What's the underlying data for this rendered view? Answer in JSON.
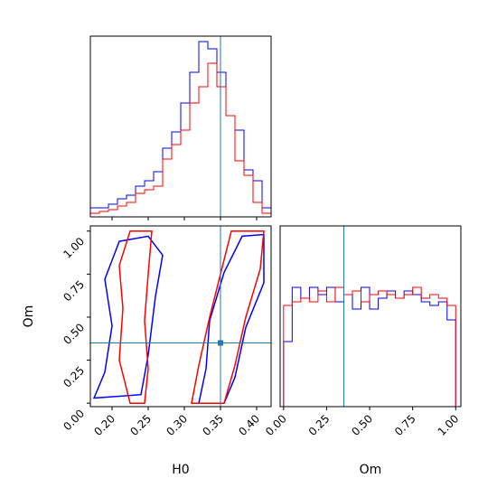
{
  "chart_data": {
    "type": "corner",
    "parameters": [
      "H0",
      "Om"
    ],
    "xlabels": {
      "H0": "H0",
      "Om": "Om"
    },
    "ylabels": {
      "Om": "Om"
    },
    "ranges": {
      "H0": [
        0.17,
        0.42
      ],
      "Om": [
        -0.02,
        1.03
      ]
    },
    "ticks": {
      "H0": [
        0.2,
        0.25,
        0.3,
        0.35,
        0.4
      ],
      "Om": [
        0.0,
        0.25,
        0.5,
        0.75,
        1.0
      ]
    },
    "tick_labels": {
      "H0": [
        "0.20",
        "0.25",
        "0.30",
        "0.35",
        "0.40"
      ],
      "Om": [
        "0.00",
        "0.25",
        "0.50",
        "0.75",
        "1.00"
      ]
    },
    "truths": {
      "H0": 0.35,
      "Om": 0.35
    },
    "colors": {
      "series_a": "#0000ff",
      "series_b": "#ff0000",
      "truth": "#1f77b4"
    },
    "series": [
      {
        "color": "#0000ff",
        "H0_hist": {
          "edges": [
            0.17,
            0.1825,
            0.195,
            0.2075,
            0.22,
            0.2325,
            0.245,
            0.2575,
            0.27,
            0.2825,
            0.295,
            0.3075,
            0.32,
            0.3325,
            0.345,
            0.3575,
            0.37,
            0.3825,
            0.395,
            0.4075,
            0.42
          ],
          "counts": [
            0.05,
            0.05,
            0.07,
            0.1,
            0.12,
            0.17,
            0.2,
            0.25,
            0.38,
            0.47,
            0.63,
            0.8,
            0.97,
            0.93,
            0.8,
            0.56,
            0.48,
            0.26,
            0.2,
            0.05
          ]
        },
        "Om_hist": {
          "edges": [
            0.0,
            0.05,
            0.1,
            0.15,
            0.2,
            0.25,
            0.3,
            0.35,
            0.4,
            0.45,
            0.5,
            0.55,
            0.6,
            0.65,
            0.7,
            0.75,
            0.8,
            0.85,
            0.9,
            0.95,
            1.0
          ],
          "counts": [
            0.36,
            0.66,
            0.6,
            0.66,
            0.62,
            0.66,
            0.58,
            0.62,
            0.54,
            0.66,
            0.54,
            0.6,
            0.64,
            0.6,
            0.64,
            0.62,
            0.58,
            0.56,
            0.58,
            0.48
          ]
        },
        "contours": [
          [
            [
              0.175,
              0.03
            ],
            [
              0.19,
              0.18
            ],
            [
              0.2,
              0.45
            ],
            [
              0.19,
              0.72
            ],
            [
              0.21,
              0.94
            ],
            [
              0.25,
              0.97
            ],
            [
              0.27,
              0.86
            ],
            [
              0.26,
              0.62
            ],
            [
              0.25,
              0.28
            ],
            [
              0.24,
              0.05
            ]
          ],
          [
            [
              0.32,
              0.0
            ],
            [
              0.33,
              0.2
            ],
            [
              0.335,
              0.48
            ],
            [
              0.355,
              0.76
            ],
            [
              0.38,
              0.97
            ],
            [
              0.41,
              0.98
            ],
            [
              0.41,
              0.7
            ],
            [
              0.385,
              0.44
            ],
            [
              0.37,
              0.15
            ],
            [
              0.355,
              0.0
            ]
          ]
        ]
      },
      {
        "color": "#ff0000",
        "H0_hist": {
          "edges": [
            0.17,
            0.1825,
            0.195,
            0.2075,
            0.22,
            0.2325,
            0.245,
            0.2575,
            0.27,
            0.2825,
            0.295,
            0.3075,
            0.32,
            0.3325,
            0.345,
            0.3575,
            0.37,
            0.3825,
            0.395,
            0.4075,
            0.42
          ],
          "counts": [
            0.02,
            0.03,
            0.04,
            0.06,
            0.08,
            0.13,
            0.15,
            0.17,
            0.32,
            0.4,
            0.48,
            0.63,
            0.72,
            0.85,
            0.72,
            0.56,
            0.31,
            0.23,
            0.08,
            0.02
          ]
        },
        "Om_hist": {
          "edges": [
            0.0,
            0.05,
            0.1,
            0.15,
            0.2,
            0.25,
            0.3,
            0.35,
            0.4,
            0.45,
            0.5,
            0.55,
            0.6,
            0.65,
            0.7,
            0.75,
            0.8,
            0.85,
            0.9,
            0.95,
            1.0
          ],
          "counts": [
            0.56,
            0.58,
            0.6,
            0.58,
            0.64,
            0.58,
            0.66,
            0.62,
            0.64,
            0.58,
            0.62,
            0.64,
            0.62,
            0.6,
            0.62,
            0.66,
            0.6,
            0.62,
            0.6,
            0.56
          ]
        },
        "contours": [
          [
            [
              0.225,
              0.0
            ],
            [
              0.21,
              0.25
            ],
            [
              0.215,
              0.55
            ],
            [
              0.21,
              0.8
            ],
            [
              0.225,
              1.0
            ],
            [
              0.255,
              1.0
            ],
            [
              0.25,
              0.75
            ],
            [
              0.245,
              0.48
            ],
            [
              0.25,
              0.2
            ],
            [
              0.245,
              0.0
            ]
          ],
          [
            [
              0.31,
              0.0
            ],
            [
              0.32,
              0.22
            ],
            [
              0.335,
              0.5
            ],
            [
              0.35,
              0.75
            ],
            [
              0.365,
              1.0
            ],
            [
              0.41,
              1.0
            ],
            [
              0.405,
              0.78
            ],
            [
              0.385,
              0.5
            ],
            [
              0.37,
              0.22
            ],
            [
              0.355,
              0.0
            ]
          ]
        ]
      }
    ]
  }
}
